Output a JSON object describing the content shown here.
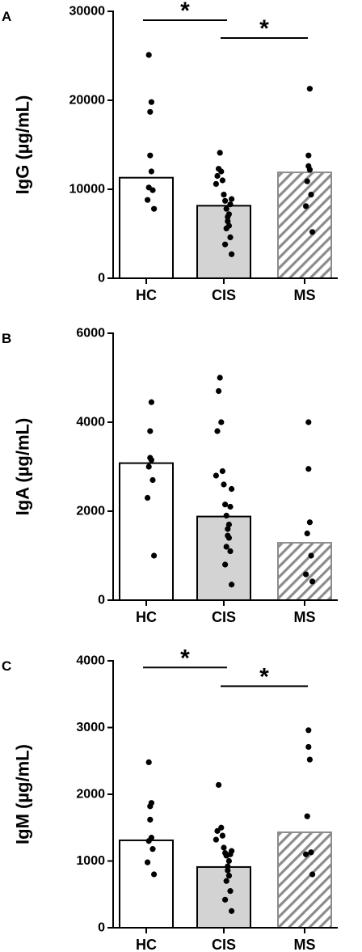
{
  "chart_data": [
    {
      "type": "bar",
      "panel": "A",
      "ylabel": "IgG (µg/mL)",
      "ylim": [
        0,
        30000
      ],
      "yticks": [
        0,
        10000,
        20000,
        30000
      ],
      "categories": [
        "HC",
        "CIS",
        "MS"
      ],
      "values": [
        11300,
        8150,
        11900
      ],
      "points": [
        [
          7800,
          8800,
          9900,
          10200,
          12000,
          13800,
          18700,
          19800,
          25100
        ],
        [
          2700,
          3800,
          4600,
          5600,
          5900,
          6400,
          6900,
          7200,
          7800,
          8300,
          8700,
          8900,
          9400,
          10600,
          11000,
          11500,
          12000,
          12300,
          14100
        ],
        [
          5200,
          8100,
          9400,
          10900,
          12200,
          12600,
          13800,
          21300
        ]
      ],
      "fills": [
        "white",
        "#d3d3d3",
        "hatch"
      ],
      "significance": [
        {
          "from": "HC",
          "to": "CIS",
          "label": "*",
          "level": 29000
        },
        {
          "from": "CIS",
          "to": "MS",
          "label": "*",
          "level": 27000
        }
      ]
    },
    {
      "type": "bar",
      "panel": "B",
      "ylabel": "IgA (µg/mL)",
      "ylim": [
        0,
        6000
      ],
      "yticks": [
        0,
        2000,
        4000,
        6000
      ],
      "categories": [
        "HC",
        "CIS",
        "MS"
      ],
      "values": [
        3080,
        1880,
        1290
      ],
      "points": [
        [
          1000,
          2300,
          2700,
          3000,
          3150,
          3200,
          3800,
          4450
        ],
        [
          350,
          800,
          1100,
          1200,
          1400,
          1450,
          1600,
          1700,
          1900,
          2100,
          2150,
          2500,
          2600,
          2800,
          2900,
          3800,
          4000,
          4700,
          5000
        ],
        [
          420,
          580,
          1000,
          1500,
          1750,
          2950,
          4000
        ]
      ],
      "fills": [
        "white",
        "#d3d3d3",
        "hatch"
      ],
      "significance": []
    },
    {
      "type": "bar",
      "panel": "C",
      "ylabel": "IgM (µg/mL)",
      "ylim": [
        0,
        4000
      ],
      "yticks": [
        0,
        1000,
        2000,
        3000,
        4000
      ],
      "categories": [
        "HC",
        "CIS",
        "MS"
      ],
      "values": [
        1310,
        910,
        1430
      ],
      "points": [
        [
          800,
          980,
          1180,
          1300,
          1350,
          1620,
          1820,
          1870,
          2480
        ],
        [
          250,
          420,
          550,
          700,
          780,
          860,
          920,
          1000,
          1080,
          1100,
          1120,
          1150,
          1200,
          1320,
          1380,
          1450,
          1500,
          2140
        ],
        [
          800,
          1100,
          1130,
          1670,
          2520,
          2710,
          2960
        ]
      ],
      "fills": [
        "white",
        "#d3d3d3",
        "hatch"
      ],
      "significance": [
        {
          "from": "HC",
          "to": "CIS",
          "label": "*",
          "level": 3900
        },
        {
          "from": "CIS",
          "to": "MS",
          "label": "*",
          "level": 3620
        }
      ]
    }
  ]
}
